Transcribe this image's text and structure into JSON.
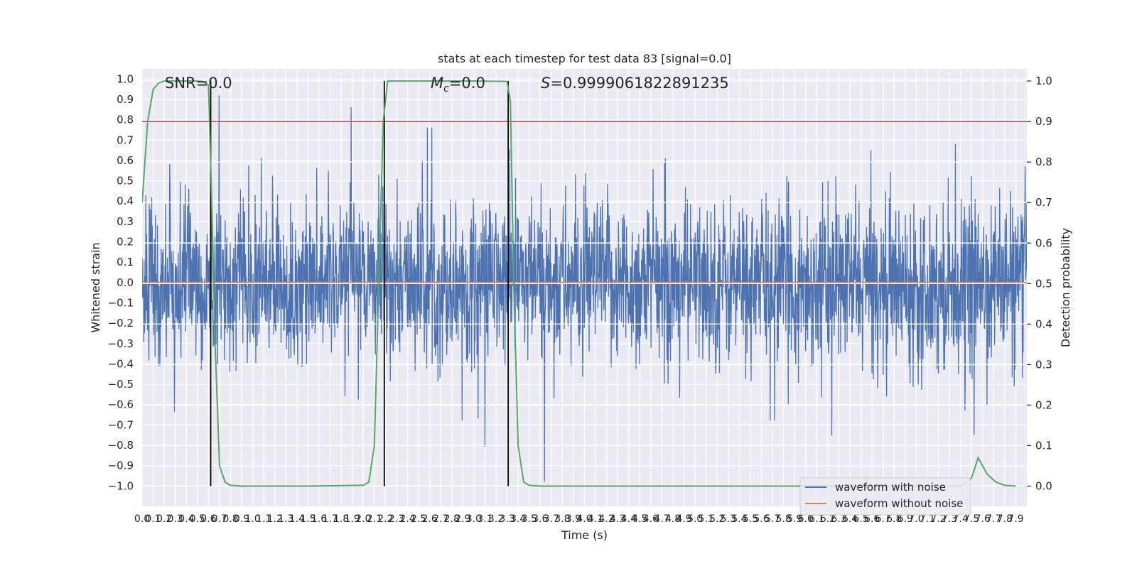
{
  "chart_data": {
    "type": "line",
    "title": "stats at each timestep for test data 83 [signal=0.0]",
    "xlabel": "Time (s)",
    "ylabel_left": "Whitened strain",
    "ylabel_right": "Detection probability",
    "xlim": [
      0.0,
      8.0
    ],
    "ylim_left": [
      -1.1,
      1.05
    ],
    "ylim_right": [
      -0.05,
      1.03
    ],
    "x_ticks": [
      "0.0",
      "0.1",
      "0.2",
      "0.3",
      "0.4",
      "0.5",
      "0.6",
      "0.7",
      "0.8",
      "0.9",
      "1.0",
      "1.1",
      "1.2",
      "1.3",
      "1.4",
      "1.5",
      "1.6",
      "1.7",
      "1.8",
      "1.9",
      "2.0",
      "2.1",
      "2.2",
      "2.3",
      "2.4",
      "2.5",
      "2.6",
      "2.7",
      "2.8",
      "2.9",
      "3.0",
      "3.1",
      "3.2",
      "3.3",
      "3.4",
      "3.5",
      "3.6",
      "3.7",
      "3.8",
      "3.9",
      "4.0",
      "4.1",
      "4.2",
      "4.3",
      "4.4",
      "4.5",
      "4.6",
      "4.7",
      "4.8",
      "4.9",
      "5.0",
      "5.1",
      "5.2",
      "5.3",
      "5.4",
      "5.5",
      "5.6",
      "5.7",
      "5.8",
      "5.9",
      "6.0",
      "6.1",
      "6.2",
      "6.3",
      "6.4",
      "6.5",
      "6.6",
      "6.7",
      "6.8",
      "6.9",
      "7.0",
      "7.1",
      "7.2",
      "7.3",
      "7.4",
      "7.5",
      "7.6",
      "7.7",
      "7.8",
      "7.9"
    ],
    "y_ticks_left": [
      "1.0",
      "0.9",
      "0.8",
      "0.7",
      "0.6",
      "0.5",
      "0.4",
      "0.3",
      "0.2",
      "0.1",
      "0.0",
      "−0.1",
      "−0.2",
      "−0.3",
      "−0.4",
      "−0.5",
      "−0.6",
      "−0.7",
      "−0.8",
      "−0.9",
      "−1.0"
    ],
    "y_ticks_right": [
      "1.0",
      "0.9",
      "0.8",
      "0.7",
      "0.6",
      "0.5",
      "0.4",
      "0.3",
      "0.2",
      "0.1",
      "0.0"
    ],
    "annotations": {
      "snr": "SNR=0.0",
      "mc_symbol": "M",
      "mc_sub": "c",
      "mc_value": "=0.0",
      "s_symbol": "S",
      "s_value": "=0.9999061822891235"
    },
    "series": [
      {
        "name": "waveform with noise",
        "color": "#4c72b0",
        "axis": "left",
        "description": "dense noise, amplitude mostly within ±0.6 with spikes to about ±0.95"
      },
      {
        "name": "waveform without noise",
        "color": "#dd8452",
        "axis": "left",
        "x": [
          0.0,
          8.0
        ],
        "y": [
          0.0,
          0.0
        ]
      },
      {
        "name": "detection probability",
        "color": "#55a868",
        "axis": "right",
        "x": [
          0.0,
          0.05,
          0.1,
          0.15,
          0.2,
          0.3,
          0.4,
          0.5,
          0.55,
          0.6,
          0.63,
          0.66,
          0.7,
          0.75,
          0.8,
          0.9,
          1.0,
          1.5,
          2.0,
          2.05,
          2.1,
          2.14,
          2.18,
          2.22,
          2.26,
          2.3,
          2.4,
          2.6,
          3.0,
          3.3,
          3.33,
          3.36,
          3.4,
          3.45,
          3.5,
          3.6,
          4.0,
          6.0,
          7.4,
          7.5,
          7.56,
          7.64,
          7.72,
          7.8,
          7.9
        ],
        "y": [
          0.7,
          0.9,
          0.98,
          0.995,
          1.0,
          1.0,
          1.0,
          1.0,
          0.999,
          0.99,
          0.7,
          0.35,
          0.05,
          0.01,
          0.002,
          0.0,
          0.0,
          0.0,
          0.002,
          0.01,
          0.1,
          0.5,
          0.9,
          1.0,
          1.0,
          1.0,
          1.0,
          1.0,
          1.0,
          0.999,
          0.95,
          0.5,
          0.1,
          0.01,
          0.002,
          0.0,
          0.0,
          0.0,
          0.0,
          0.02,
          0.07,
          0.03,
          0.01,
          0.002,
          0.0
        ]
      }
    ],
    "threshold_line": {
      "value_right": 0.9,
      "color": "#c44e52"
    },
    "vertical_lines_x": [
      0.62,
      2.19,
      3.31
    ],
    "vertical_line_color": "#000000",
    "legend": {
      "position": "lower-right",
      "entries": [
        "waveform with noise",
        "waveform without noise"
      ]
    },
    "colors": {
      "background": "#eaeaf2",
      "grid": "#ffffff"
    }
  }
}
